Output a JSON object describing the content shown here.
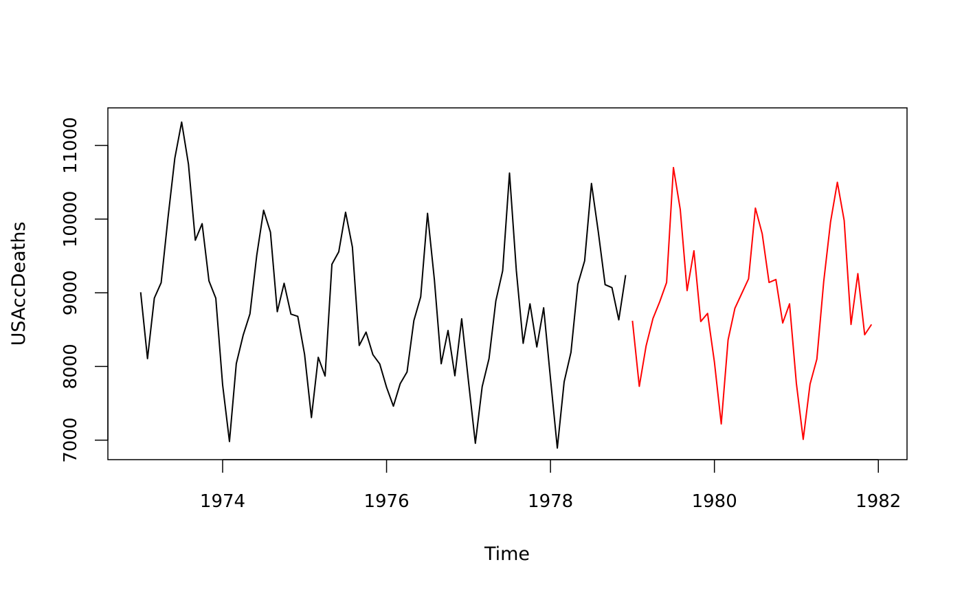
{
  "chart_data": {
    "type": "line",
    "xlabel": "Time",
    "ylabel": "USAccDeaths",
    "xlim": [
      1972.6,
      1982.35
    ],
    "ylim": [
      6735,
      11510
    ],
    "x_ticks": [
      1974,
      1976,
      1978,
      1980,
      1982
    ],
    "x_tick_labels": [
      "1974",
      "1976",
      "1978",
      "1980",
      "1982"
    ],
    "y_ticks": [
      7000,
      8000,
      9000,
      10000,
      11000
    ],
    "y_tick_labels": [
      "7000",
      "8000",
      "9000",
      "10000",
      "11000"
    ],
    "grid": false,
    "legend": "none",
    "series": [
      {
        "color": "#000000",
        "x_start": 1973.0,
        "x_step": 0.0833333,
        "values": [
          9007,
          8106,
          8928,
          9137,
          10017,
          10826,
          11317,
          10744,
          9713,
          9938,
          9161,
          8927,
          7750,
          6981,
          8038,
          8422,
          8714,
          9512,
          10120,
          9823,
          8743,
          9129,
          8710,
          8680,
          8162,
          7306,
          8124,
          7870,
          9387,
          9556,
          10093,
          9620,
          8285,
          8466,
          8160,
          8034,
          7717,
          7461,
          7767,
          7925,
          8623,
          8945,
          10078,
          9179,
          8037,
          8488,
          7874,
          8647,
          7792,
          6957,
          7726,
          8106,
          8890,
          9299,
          10625,
          9302,
          8314,
          8850,
          8265,
          8796,
          7836,
          6892,
          7791,
          8192,
          9115,
          9434,
          10484,
          9827,
          9110,
          9070,
          8633,
          9240
        ]
      },
      {
        "color": "#ff0000",
        "x_start": 1979.0,
        "x_step": 0.0833333,
        "values": [
          8620,
          7730,
          8280,
          8650,
          8880,
          9140,
          10700,
          10130,
          9030,
          9570,
          8610,
          8720,
          8060,
          7220,
          8360,
          8790,
          8990,
          9190,
          10150,
          9800,
          9140,
          9180,
          8590,
          8850,
          7770,
          7010,
          7760,
          8100,
          9150,
          9960,
          10500,
          9980,
          8570,
          9260,
          8430,
          8570
        ]
      }
    ]
  }
}
